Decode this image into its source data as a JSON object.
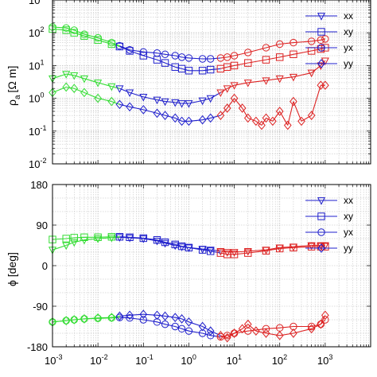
{
  "chart_data": [
    {
      "type": "scatter",
      "title": "",
      "xlabel": "",
      "ylabel_main": "ρ",
      "ylabel_sub": "a",
      "ylabel_unit": "[Ω m]",
      "x_scale": "log",
      "y_scale": "log",
      "xlim": [
        0.001,
        10000
      ],
      "ylim": [
        0.01,
        1000
      ],
      "grid": true,
      "legend_position": "top-right",
      "colors": {
        "low": "#33dd33",
        "mid": "#1f1fcc",
        "high": "#dd2222"
      },
      "y_tick_labels": [
        {
          "base": "10",
          "exp": "-2",
          "v": 0.01
        },
        {
          "base": "10",
          "exp": "-1",
          "v": 0.1
        },
        {
          "base": "10",
          "exp": "0",
          "v": 1
        },
        {
          "base": "10",
          "exp": "1",
          "v": 10
        },
        {
          "base": "10",
          "exp": "2",
          "v": 100
        },
        {
          "base": "10",
          "exp": "3",
          "v": 1000
        }
      ],
      "series": [
        {
          "name": "xx",
          "marker": "triangle-down",
          "x": [
            0.001,
            0.002,
            0.003,
            0.005,
            0.01,
            0.02,
            0.03,
            0.05,
            0.1,
            0.2,
            0.3,
            0.5,
            0.7,
            1,
            2,
            3,
            5,
            7,
            10,
            20,
            50,
            100,
            200,
            500,
            800,
            1000
          ],
          "y": [
            4.0,
            5.5,
            5.0,
            4.0,
            3.0,
            2.3,
            2.0,
            1.5,
            1.1,
            0.9,
            0.8,
            0.75,
            0.7,
            0.7,
            0.85,
            1.0,
            1.5,
            2.0,
            2.5,
            3.0,
            3.5,
            4.0,
            4.5,
            6.0,
            10.0,
            14.0
          ]
        },
        {
          "name": "xy",
          "marker": "square",
          "x": [
            0.001,
            0.002,
            0.003,
            0.005,
            0.01,
            0.02,
            0.03,
            0.05,
            0.1,
            0.2,
            0.3,
            0.5,
            0.7,
            1,
            2,
            3,
            5,
            7,
            10,
            20,
            50,
            100,
            200,
            500,
            800,
            1000
          ],
          "y": [
            130,
            120,
            100,
            80,
            60,
            45,
            38,
            28,
            20,
            15,
            12,
            9,
            8,
            7,
            7,
            7.5,
            8,
            9,
            10,
            12,
            15,
            18,
            22,
            28,
            32,
            35
          ]
        },
        {
          "name": "yx",
          "marker": "circle",
          "x": [
            0.001,
            0.002,
            0.003,
            0.005,
            0.01,
            0.02,
            0.03,
            0.05,
            0.1,
            0.2,
            0.3,
            0.5,
            0.7,
            1,
            2,
            3,
            5,
            7,
            10,
            20,
            50,
            100,
            200,
            500,
            800,
            1000
          ],
          "y": [
            150,
            140,
            120,
            90,
            70,
            50,
            40,
            30,
            26,
            24,
            22,
            20,
            18,
            17,
            16,
            16,
            17,
            18,
            20,
            25,
            35,
            45,
            50,
            55,
            60,
            65
          ]
        },
        {
          "name": "yy",
          "marker": "diamond",
          "x": [
            0.001,
            0.002,
            0.003,
            0.005,
            0.01,
            0.02,
            0.03,
            0.05,
            0.1,
            0.2,
            0.3,
            0.5,
            0.7,
            1,
            2,
            3,
            5,
            7,
            10,
            15,
            20,
            30,
            40,
            50,
            70,
            100,
            150,
            200,
            300,
            500,
            800,
            1000
          ],
          "y": [
            1.5,
            2.2,
            2.0,
            1.5,
            1.0,
            0.8,
            0.65,
            0.55,
            0.45,
            0.35,
            0.3,
            0.25,
            0.2,
            0.2,
            0.22,
            0.25,
            0.3,
            0.5,
            1.0,
            0.5,
            0.25,
            0.2,
            0.15,
            0.25,
            0.2,
            0.4,
            0.15,
            0.8,
            0.2,
            0.3,
            2.5,
            2.5
          ]
        }
      ]
    },
    {
      "type": "scatter",
      "title": "",
      "xlabel": "",
      "ylabel": "ϕ [deg]",
      "x_scale": "log",
      "xlim": [
        0.001,
        10000
      ],
      "ylim": [
        -180,
        180
      ],
      "grid": true,
      "legend_position": "top-right",
      "colors": {
        "low": "#33dd33",
        "mid": "#1f1fcc",
        "high": "#dd2222"
      },
      "x_tick_labels": [
        {
          "base": "10",
          "exp": "-3",
          "v": 0.001
        },
        {
          "base": "10",
          "exp": "-2",
          "v": 0.01
        },
        {
          "base": "10",
          "exp": "-1",
          "v": 0.1
        },
        {
          "base": "10",
          "exp": "0",
          "v": 1
        },
        {
          "base": "10",
          "exp": "1",
          "v": 10
        },
        {
          "base": "10",
          "exp": "2",
          "v": 100
        },
        {
          "base": "10",
          "exp": "3",
          "v": 1000
        }
      ],
      "y_tick_labels": [
        {
          "label": "-180",
          "v": -180
        },
        {
          "label": "-90",
          "v": -90
        },
        {
          "label": "0",
          "v": 0
        },
        {
          "label": "90",
          "v": 90
        },
        {
          "label": "180",
          "v": 180
        }
      ],
      "series": [
        {
          "name": "xx",
          "marker": "triangle-down",
          "x": [
            0.001,
            0.002,
            0.003,
            0.005,
            0.01,
            0.02,
            0.03,
            0.05,
            0.1,
            0.2,
            0.3,
            0.5,
            0.7,
            1,
            2,
            3,
            5,
            7,
            10,
            20,
            50,
            100,
            200,
            500,
            800,
            1000
          ],
          "y": [
            35,
            45,
            52,
            57,
            60,
            62,
            63,
            62,
            60,
            55,
            50,
            45,
            42,
            40,
            37,
            35,
            32,
            30,
            30,
            32,
            35,
            40,
            42,
            45,
            45,
            45
          ]
        },
        {
          "name": "xy",
          "marker": "square",
          "x": [
            0.001,
            0.002,
            0.003,
            0.005,
            0.01,
            0.02,
            0.03,
            0.05,
            0.1,
            0.2,
            0.3,
            0.5,
            0.7,
            1,
            2,
            3,
            5,
            7,
            10,
            20,
            50,
            100,
            200,
            500,
            800,
            1000
          ],
          "y": [
            58,
            60,
            62,
            63,
            63,
            64,
            64,
            63,
            61,
            57,
            52,
            47,
            43,
            40,
            35,
            32,
            28,
            25,
            25,
            28,
            33,
            38,
            40,
            42,
            42,
            42
          ]
        },
        {
          "name": "yx",
          "marker": "circle",
          "x": [
            0.001,
            0.002,
            0.003,
            0.005,
            0.01,
            0.02,
            0.03,
            0.05,
            0.1,
            0.2,
            0.3,
            0.5,
            0.7,
            1,
            2,
            3,
            5,
            7,
            10,
            20,
            50,
            100,
            200,
            500,
            800,
            1000
          ],
          "y": [
            -125,
            -122,
            -120,
            -118,
            -117,
            -116,
            -115,
            -116,
            -120,
            -125,
            -130,
            -135,
            -140,
            -145,
            -150,
            -155,
            -158,
            -155,
            -150,
            -145,
            -140,
            -138,
            -135,
            -135,
            -130,
            -120
          ]
        },
        {
          "name": "yy",
          "marker": "diamond",
          "x": [
            0.001,
            0.002,
            0.003,
            0.005,
            0.01,
            0.02,
            0.03,
            0.05,
            0.1,
            0.2,
            0.3,
            0.5,
            0.7,
            1,
            2,
            3,
            5,
            7,
            10,
            15,
            20,
            30,
            50,
            100,
            200,
            500,
            800,
            1000
          ],
          "y": [
            -125,
            -122,
            -120,
            -118,
            -116,
            -115,
            -112,
            -110,
            -108,
            -110,
            -112,
            -115,
            -118,
            -125,
            -135,
            -145,
            -155,
            -160,
            -150,
            -140,
            -130,
            -145,
            -150,
            -155,
            -150,
            -140,
            -130,
            -110
          ]
        }
      ]
    }
  ],
  "legend_labels": [
    "xx",
    "xy",
    "yx",
    "yy"
  ]
}
